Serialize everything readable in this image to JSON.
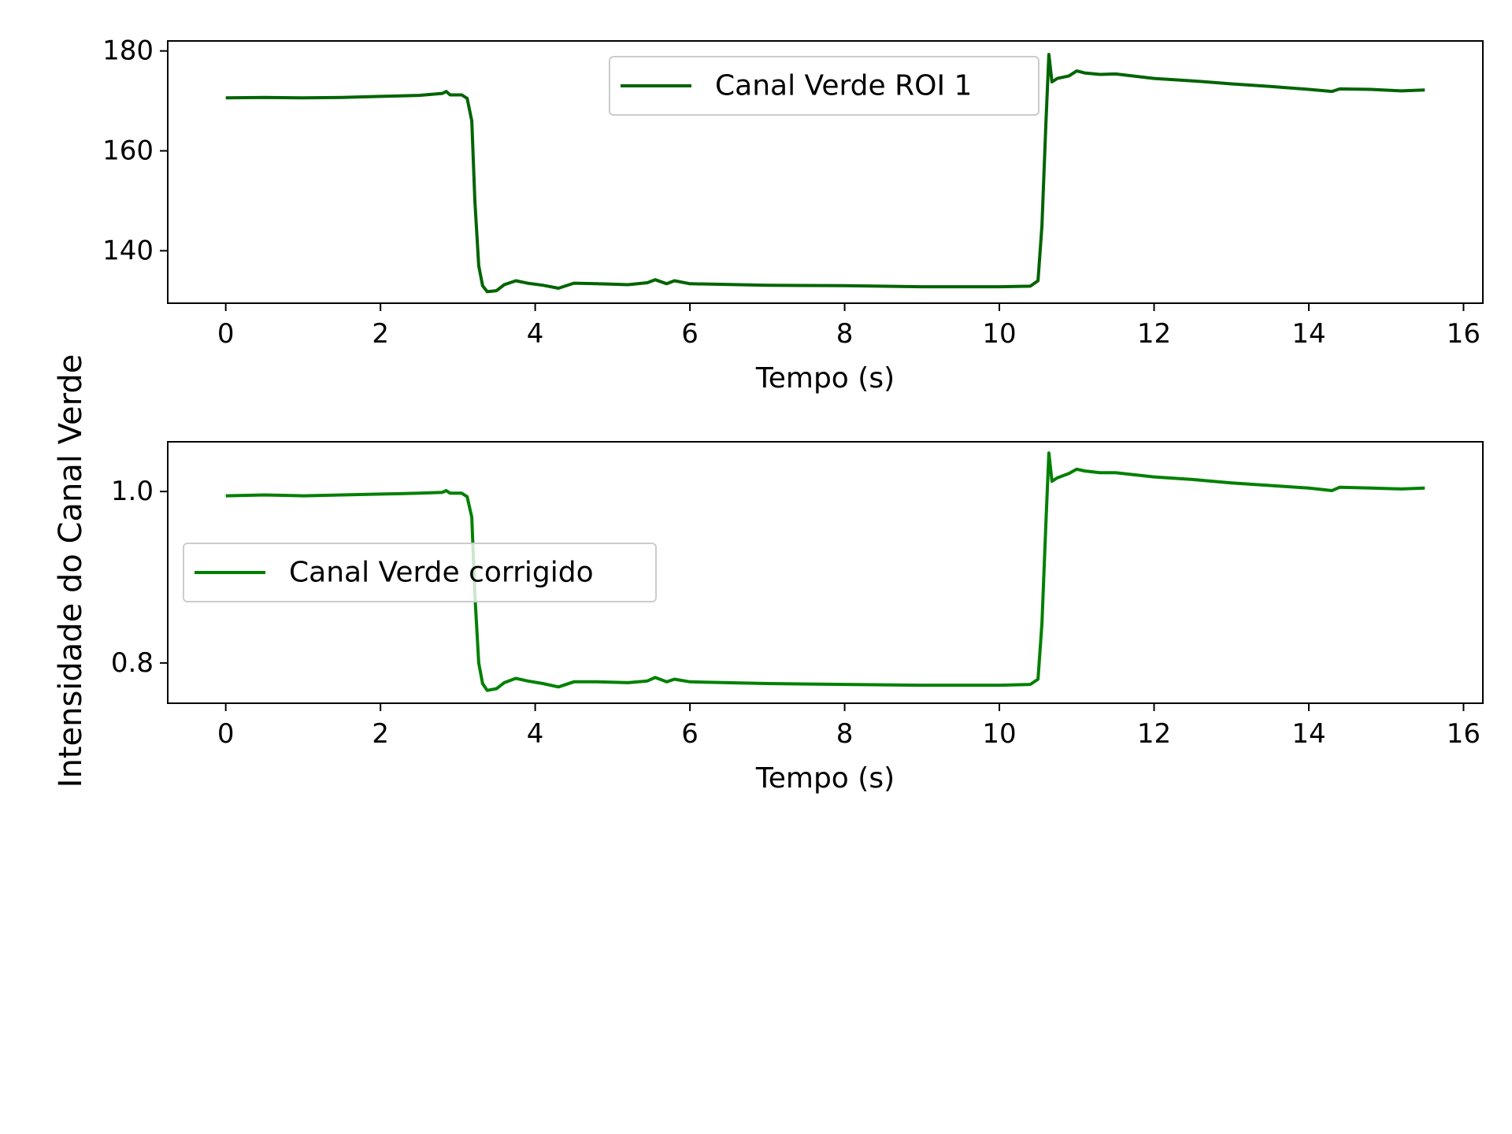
{
  "figure": {
    "ylabel": "Intensidade do Canal Verde"
  },
  "chart_data": [
    {
      "type": "line",
      "title": "",
      "xlabel": "Tempo (s)",
      "ylabel": "",
      "xlim": [
        -0.75,
        16.25
      ],
      "ylim": [
        129.5,
        182
      ],
      "xticks": [
        0,
        2,
        4,
        6,
        8,
        10,
        12,
        14,
        16
      ],
      "yticks": [
        140,
        160,
        180
      ],
      "grid": false,
      "legend_position": "top-center",
      "series": [
        {
          "name": "Canal Verde ROI 1",
          "color": "#006400",
          "points": [
            [
              0,
              170.6
            ],
            [
              0.5,
              170.7
            ],
            [
              1.0,
              170.6
            ],
            [
              1.5,
              170.7
            ],
            [
              2.0,
              170.9
            ],
            [
              2.5,
              171.1
            ],
            [
              2.8,
              171.5
            ],
            [
              2.85,
              171.9
            ],
            [
              2.9,
              171.2
            ],
            [
              3.05,
              171.2
            ],
            [
              3.12,
              170.5
            ],
            [
              3.18,
              166
            ],
            [
              3.22,
              150
            ],
            [
              3.27,
              137
            ],
            [
              3.32,
              133
            ],
            [
              3.38,
              131.8
            ],
            [
              3.5,
              132.0
            ],
            [
              3.6,
              133.2
            ],
            [
              3.75,
              134.0
            ],
            [
              3.9,
              133.5
            ],
            [
              4.1,
              133.1
            ],
            [
              4.3,
              132.5
            ],
            [
              4.5,
              133.5
            ],
            [
              4.8,
              133.4
            ],
            [
              5.2,
              133.2
            ],
            [
              5.45,
              133.6
            ],
            [
              5.55,
              134.2
            ],
            [
              5.7,
              133.4
            ],
            [
              5.8,
              134.0
            ],
            [
              6.0,
              133.4
            ],
            [
              7.0,
              133.1
            ],
            [
              8.0,
              133.0
            ],
            [
              9.0,
              132.8
            ],
            [
              10.0,
              132.8
            ],
            [
              10.4,
              132.9
            ],
            [
              10.5,
              134
            ],
            [
              10.55,
              145
            ],
            [
              10.6,
              165
            ],
            [
              10.64,
              179.3
            ],
            [
              10.68,
              173.8
            ],
            [
              10.75,
              174.5
            ],
            [
              10.9,
              175.0
            ],
            [
              11.0,
              176.0
            ],
            [
              11.1,
              175.6
            ],
            [
              11.3,
              175.3
            ],
            [
              11.5,
              175.4
            ],
            [
              12.0,
              174.5
            ],
            [
              12.5,
              174.0
            ],
            [
              13.0,
              173.4
            ],
            [
              13.5,
              172.9
            ],
            [
              14.0,
              172.3
            ],
            [
              14.3,
              171.9
            ],
            [
              14.4,
              172.4
            ],
            [
              14.8,
              172.3
            ],
            [
              15.2,
              172.0
            ],
            [
              15.5,
              172.2
            ]
          ]
        }
      ]
    },
    {
      "type": "line",
      "title": "",
      "xlabel": "Tempo (s)",
      "ylabel": "",
      "xlim": [
        -0.75,
        16.25
      ],
      "ylim": [
        0.753,
        1.058
      ],
      "xticks": [
        0,
        2,
        4,
        6,
        8,
        10,
        12,
        14,
        16
      ],
      "yticks": [
        0.8,
        1.0
      ],
      "ytick_labels": [
        "0.8",
        "1.0"
      ],
      "grid": false,
      "legend_position": "center-left",
      "series": [
        {
          "name": "Canal Verde corrigido",
          "color": "#008000",
          "points": [
            [
              0,
              0.995
            ],
            [
              0.5,
              0.996
            ],
            [
              1.0,
              0.995
            ],
            [
              1.5,
              0.996
            ],
            [
              2.0,
              0.997
            ],
            [
              2.5,
              0.998
            ],
            [
              2.8,
              0.999
            ],
            [
              2.85,
              1.001
            ],
            [
              2.9,
              0.998
            ],
            [
              3.05,
              0.998
            ],
            [
              3.12,
              0.994
            ],
            [
              3.18,
              0.97
            ],
            [
              3.22,
              0.88
            ],
            [
              3.27,
              0.8
            ],
            [
              3.32,
              0.776
            ],
            [
              3.38,
              0.768
            ],
            [
              3.5,
              0.77
            ],
            [
              3.6,
              0.777
            ],
            [
              3.75,
              0.782
            ],
            [
              3.9,
              0.779
            ],
            [
              4.1,
              0.776
            ],
            [
              4.3,
              0.772
            ],
            [
              4.5,
              0.778
            ],
            [
              4.8,
              0.778
            ],
            [
              5.2,
              0.777
            ],
            [
              5.45,
              0.779
            ],
            [
              5.55,
              0.783
            ],
            [
              5.7,
              0.778
            ],
            [
              5.8,
              0.781
            ],
            [
              6.0,
              0.778
            ],
            [
              7.0,
              0.776
            ],
            [
              8.0,
              0.775
            ],
            [
              9.0,
              0.774
            ],
            [
              10.0,
              0.774
            ],
            [
              10.4,
              0.775
            ],
            [
              10.5,
              0.781
            ],
            [
              10.55,
              0.846
            ],
            [
              10.6,
              0.96
            ],
            [
              10.64,
              1.045
            ],
            [
              10.68,
              1.012
            ],
            [
              10.75,
              1.016
            ],
            [
              10.9,
              1.021
            ],
            [
              11.0,
              1.026
            ],
            [
              11.1,
              1.024
            ],
            [
              11.3,
              1.022
            ],
            [
              11.5,
              1.022
            ],
            [
              12.0,
              1.017
            ],
            [
              12.5,
              1.014
            ],
            [
              13.0,
              1.01
            ],
            [
              13.5,
              1.007
            ],
            [
              14.0,
              1.004
            ],
            [
              14.3,
              1.001
            ],
            [
              14.4,
              1.005
            ],
            [
              14.8,
              1.004
            ],
            [
              15.2,
              1.003
            ],
            [
              15.5,
              1.004
            ]
          ]
        }
      ]
    }
  ]
}
